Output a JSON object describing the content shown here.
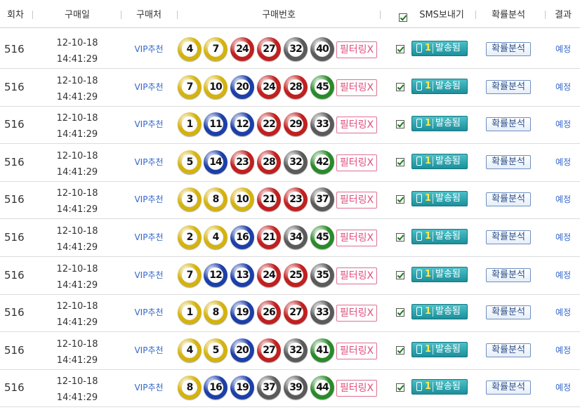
{
  "header": {
    "round": "회차",
    "purchase_date": "구매일",
    "purchase_place": "구매처",
    "numbers": "구매번호",
    "sms": "SMS보내기",
    "analysis": "확률분석",
    "result": "결과"
  },
  "colors": {
    "ball_yellow": "#d4b20f",
    "ball_blue": "#1c3fa8",
    "ball_red": "#c02020",
    "ball_gray": "#5a5a5a",
    "ball_green": "#2a8a2a",
    "filter_pink": "#e05080",
    "sms_teal": "#1c8f9b",
    "link_blue": "#3366cc"
  },
  "rows": [
    {
      "round": "516",
      "date": "12-10-18",
      "time": "14:41:29",
      "place": "VIP추천",
      "numbers": [
        "4",
        "7",
        "24",
        "27",
        "32",
        "40"
      ],
      "filter": "필터링X",
      "sms_count": "1",
      "sms_status": "발송됨",
      "analysis": "확률분석",
      "result": "예정"
    },
    {
      "round": "516",
      "date": "12-10-18",
      "time": "14:41:29",
      "place": "VIP추천",
      "numbers": [
        "7",
        "10",
        "20",
        "24",
        "28",
        "45"
      ],
      "filter": "필터링X",
      "sms_count": "1",
      "sms_status": "발송됨",
      "analysis": "확률분석",
      "result": "예정"
    },
    {
      "round": "516",
      "date": "12-10-18",
      "time": "14:41:29",
      "place": "VIP추천",
      "numbers": [
        "1",
        "11",
        "12",
        "22",
        "29",
        "33"
      ],
      "filter": "필터링X",
      "sms_count": "1",
      "sms_status": "발송됨",
      "analysis": "확률분석",
      "result": "예정"
    },
    {
      "round": "516",
      "date": "12-10-18",
      "time": "14:41:29",
      "place": "VIP추천",
      "numbers": [
        "5",
        "14",
        "23",
        "28",
        "32",
        "42"
      ],
      "filter": "필터링X",
      "sms_count": "1",
      "sms_status": "발송됨",
      "analysis": "확률분석",
      "result": "예정"
    },
    {
      "round": "516",
      "date": "12-10-18",
      "time": "14:41:29",
      "place": "VIP추천",
      "numbers": [
        "3",
        "8",
        "10",
        "21",
        "23",
        "37"
      ],
      "filter": "필터링X",
      "sms_count": "1",
      "sms_status": "발송됨",
      "analysis": "확률분석",
      "result": "예정"
    },
    {
      "round": "516",
      "date": "12-10-18",
      "time": "14:41:29",
      "place": "VIP추천",
      "numbers": [
        "2",
        "4",
        "16",
        "21",
        "34",
        "45"
      ],
      "filter": "필터링X",
      "sms_count": "1",
      "sms_status": "발송됨",
      "analysis": "확률분석",
      "result": "예정"
    },
    {
      "round": "516",
      "date": "12-10-18",
      "time": "14:41:29",
      "place": "VIP추천",
      "numbers": [
        "7",
        "12",
        "13",
        "24",
        "25",
        "35"
      ],
      "filter": "필터링X",
      "sms_count": "1",
      "sms_status": "발송됨",
      "analysis": "확률분석",
      "result": "예정"
    },
    {
      "round": "516",
      "date": "12-10-18",
      "time": "14:41:29",
      "place": "VIP추천",
      "numbers": [
        "1",
        "8",
        "19",
        "26",
        "27",
        "33"
      ],
      "filter": "필터링X",
      "sms_count": "1",
      "sms_status": "발송됨",
      "analysis": "확률분석",
      "result": "예정"
    },
    {
      "round": "516",
      "date": "12-10-18",
      "time": "14:41:29",
      "place": "VIP추천",
      "numbers": [
        "4",
        "5",
        "20",
        "27",
        "32",
        "41"
      ],
      "filter": "필터링X",
      "sms_count": "1",
      "sms_status": "발송됨",
      "analysis": "확률분석",
      "result": "예정"
    },
    {
      "round": "516",
      "date": "12-10-18",
      "time": "14:41:29",
      "place": "VIP추천",
      "numbers": [
        "8",
        "16",
        "19",
        "37",
        "39",
        "44"
      ],
      "filter": "필터링X",
      "sms_count": "1",
      "sms_status": "발송됨",
      "analysis": "확률분석",
      "result": "예정"
    }
  ]
}
